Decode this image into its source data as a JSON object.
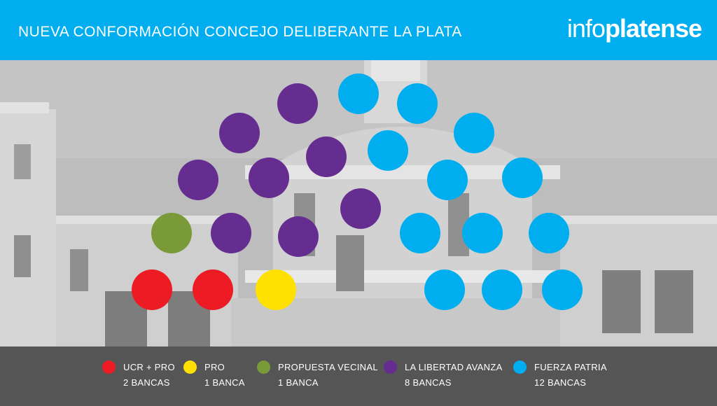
{
  "header": {
    "title": "NUEVA CONFORMACIÓN CONCEJO DELIBERANTE LA PLATA",
    "brand_light": "info",
    "brand_bold": "platense"
  },
  "colors": {
    "header_bg": "#00aeef",
    "footer_bg": "#555555",
    "photo_tint": "#b9b9b9"
  },
  "chart_data": {
    "type": "parliament",
    "title": "NUEVA CONFORMACIÓN CONCEJO DELIBERANTE LA PLATA",
    "total_seats": 24,
    "series": [
      {
        "name": "UCR + PRO",
        "seats": 2,
        "label": "2 BANCAS",
        "color": "#ed1c24"
      },
      {
        "name": "PRO",
        "seats": 1,
        "label": "1 BANCA",
        "color": "#ffe000"
      },
      {
        "name": "PROPUESTA VECINAL",
        "seats": 1,
        "label": "1 BANCA",
        "color": "#7a9a3a"
      },
      {
        "name": "LA LIBERTAD AVANZA",
        "seats": 8,
        "label": "8 BANCAS",
        "color": "#662d91"
      },
      {
        "name": "FUERZA PATRIA",
        "seats": 12,
        "label": "12 BANCAS",
        "color": "#00aeef"
      }
    ],
    "legend_position": "bottom"
  }
}
